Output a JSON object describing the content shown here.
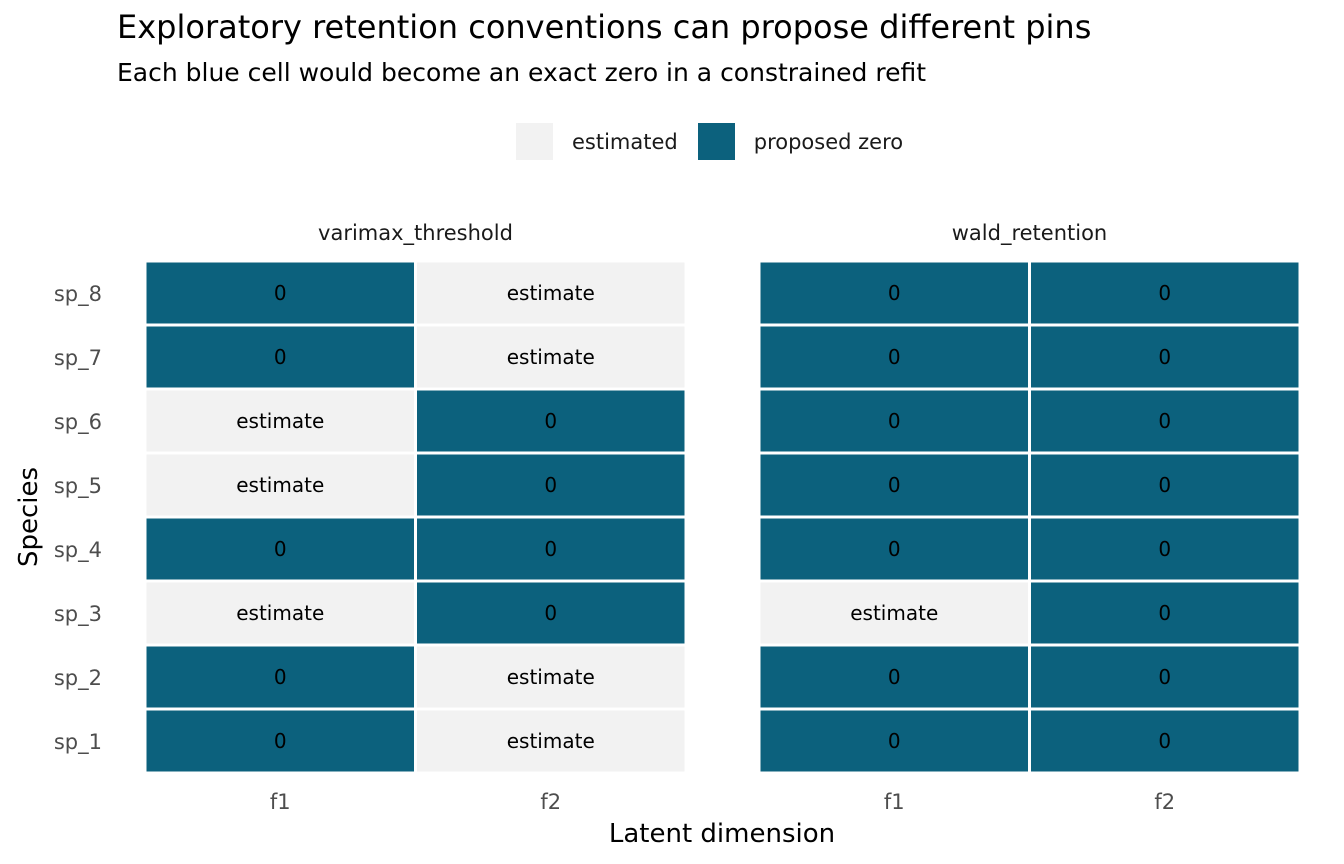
{
  "title": "Exploratory retention conventions can propose different pins",
  "subtitle": "Each blue cell would become an exact zero in a constrained refit",
  "colors": {
    "estimated": "#f2f2f2",
    "proposed_zero": "#0c617d"
  },
  "legend": [
    {
      "key": "estimated",
      "label": "estimated"
    },
    {
      "key": "proposed_zero",
      "label": "proposed zero"
    }
  ],
  "chart_data": {
    "type": "heatmap",
    "xlabel": "Latent dimension",
    "ylabel": "Species",
    "x": [
      "f1",
      "f2"
    ],
    "y": [
      "sp_1",
      "sp_2",
      "sp_3",
      "sp_4",
      "sp_5",
      "sp_6",
      "sp_7",
      "sp_8"
    ],
    "panels": [
      {
        "name": "varimax_threshold",
        "cells": {
          "sp_1": [
            "0",
            "estimate"
          ],
          "sp_2": [
            "0",
            "estimate"
          ],
          "sp_3": [
            "estimate",
            "0"
          ],
          "sp_4": [
            "0",
            "0"
          ],
          "sp_5": [
            "estimate",
            "0"
          ],
          "sp_6": [
            "estimate",
            "0"
          ],
          "sp_7": [
            "0",
            "estimate"
          ],
          "sp_8": [
            "0",
            "estimate"
          ]
        }
      },
      {
        "name": "wald_retention",
        "cells": {
          "sp_1": [
            "0",
            "0"
          ],
          "sp_2": [
            "0",
            "0"
          ],
          "sp_3": [
            "estimate",
            "0"
          ],
          "sp_4": [
            "0",
            "0"
          ],
          "sp_5": [
            "0",
            "0"
          ],
          "sp_6": [
            "0",
            "0"
          ],
          "sp_7": [
            "0",
            "0"
          ],
          "sp_8": [
            "0",
            "0"
          ]
        }
      }
    ],
    "legend_position": "top",
    "grid": false
  }
}
